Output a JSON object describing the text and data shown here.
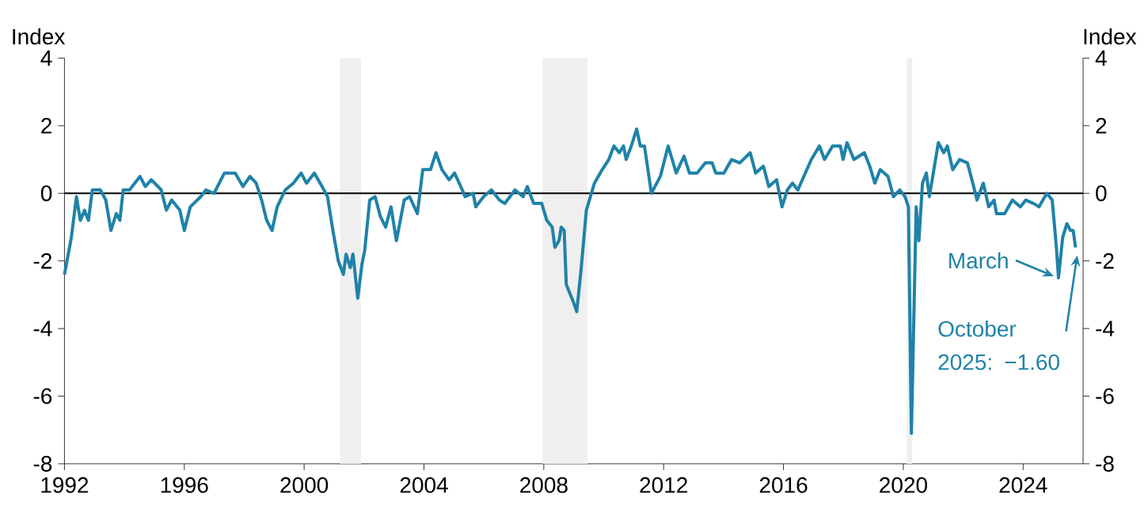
{
  "chart_data": {
    "type": "line",
    "ylabel": "Index",
    "y2label": "Index",
    "x": [
      1992.0,
      1992.23,
      1992.4,
      1992.53,
      1992.67,
      1992.8,
      1992.93,
      1993.2,
      1993.38,
      1993.55,
      1993.73,
      1993.85,
      1993.96,
      1994.17,
      1994.52,
      1994.7,
      1994.9,
      1995.23,
      1995.4,
      1995.58,
      1995.85,
      1996.0,
      1996.2,
      1996.55,
      1996.72,
      1996.99,
      1997.34,
      1997.7,
      1997.96,
      1998.19,
      1998.4,
      1998.58,
      1998.75,
      1998.93,
      1999.1,
      1999.37,
      1999.64,
      1999.9,
      2000.08,
      2000.34,
      2000.6,
      2000.78,
      2000.96,
      2001.14,
      2001.31,
      2001.4,
      2001.54,
      2001.63,
      2001.79,
      2001.93,
      2002.02,
      2002.19,
      2002.37,
      2002.55,
      2002.72,
      2002.9,
      2003.08,
      2003.34,
      2003.52,
      2003.78,
      2003.96,
      2004.22,
      2004.4,
      2004.6,
      2004.84,
      2005.02,
      2005.28,
      2005.37,
      2005.64,
      2005.73,
      2005.99,
      2006.25,
      2006.52,
      2006.7,
      2007.04,
      2007.31,
      2007.45,
      2007.66,
      2007.93,
      2008.1,
      2008.28,
      2008.37,
      2008.51,
      2008.58,
      2008.68,
      2008.75,
      2008.98,
      2009.1,
      2009.25,
      2009.42,
      2009.69,
      2009.95,
      2010.17,
      2010.34,
      2010.52,
      2010.66,
      2010.75,
      2010.92,
      2011.1,
      2011.22,
      2011.36,
      2011.59,
      2011.89,
      2012.15,
      2012.42,
      2012.68,
      2012.86,
      2013.12,
      2013.39,
      2013.62,
      2013.74,
      2014.01,
      2014.27,
      2014.54,
      2014.89,
      2015.07,
      2015.33,
      2015.51,
      2015.77,
      2015.95,
      2016.13,
      2016.3,
      2016.48,
      2016.93,
      2017.2,
      2017.37,
      2017.64,
      2017.9,
      2017.99,
      2018.12,
      2018.35,
      2018.7,
      2018.88,
      2019.05,
      2019.23,
      2019.49,
      2019.67,
      2019.88,
      2020.06,
      2020.17,
      2020.27,
      2020.43,
      2020.52,
      2020.64,
      2020.77,
      2020.87,
      2021.17,
      2021.35,
      2021.47,
      2021.65,
      2021.88,
      2022.14,
      2022.32,
      2022.46,
      2022.67,
      2022.85,
      2023.03,
      2023.11,
      2023.38,
      2023.64,
      2023.91,
      2024.09,
      2024.35,
      2024.53,
      2024.79,
      2024.97,
      2025.11,
      2025.18,
      2025.32,
      2025.46,
      2025.58,
      2025.67,
      2025.75
    ],
    "series": [
      {
        "color": "#1f82a8",
        "values": [
          -2.4,
          -1.3,
          -0.1,
          -0.8,
          -0.5,
          -0.8,
          0.1,
          0.1,
          -0.2,
          -1.1,
          -0.6,
          -0.8,
          0.1,
          0.1,
          0.5,
          0.2,
          0.4,
          0.1,
          -0.5,
          -0.2,
          -0.5,
          -1.1,
          -0.4,
          -0.1,
          0.1,
          0.0,
          0.6,
          0.6,
          0.2,
          0.5,
          0.3,
          -0.2,
          -0.8,
          -1.1,
          -0.4,
          0.1,
          0.3,
          0.6,
          0.3,
          0.6,
          0.2,
          -0.1,
          -1.1,
          -2.0,
          -2.4,
          -1.8,
          -2.2,
          -1.8,
          -3.1,
          -2.1,
          -1.7,
          -0.2,
          -0.1,
          -0.7,
          -1.0,
          -0.4,
          -1.4,
          -0.2,
          -0.1,
          -0.6,
          0.7,
          0.7,
          1.2,
          0.7,
          0.4,
          0.6,
          0.1,
          -0.1,
          0.0,
          -0.4,
          -0.1,
          0.1,
          -0.2,
          -0.3,
          0.1,
          -0.1,
          0.2,
          -0.3,
          -0.3,
          -0.8,
          -1.0,
          -1.6,
          -1.4,
          -1.0,
          -1.1,
          -2.7,
          -3.2,
          -3.5,
          -2.2,
          -0.5,
          0.3,
          0.7,
          1.0,
          1.4,
          1.2,
          1.4,
          1.0,
          1.4,
          1.9,
          1.4,
          1.4,
          0.0,
          0.5,
          1.4,
          0.6,
          1.1,
          0.6,
          0.6,
          0.9,
          0.9,
          0.6,
          0.6,
          1.0,
          0.9,
          1.2,
          0.6,
          0.8,
          0.2,
          0.4,
          -0.4,
          0.1,
          0.3,
          0.1,
          1.0,
          1.4,
          1.0,
          1.4,
          1.4,
          1.0,
          1.5,
          1.0,
          1.2,
          0.8,
          0.3,
          0.7,
          0.5,
          -0.1,
          0.1,
          -0.1,
          -0.4,
          -7.1,
          -0.4,
          -1.4,
          0.3,
          0.6,
          -0.1,
          1.5,
          1.2,
          1.4,
          0.7,
          1.0,
          0.9,
          0.3,
          -0.2,
          0.3,
          -0.4,
          -0.2,
          -0.6,
          -0.6,
          -0.2,
          -0.4,
          -0.2,
          -0.3,
          -0.4,
          0.0,
          -0.2,
          -1.6,
          -2.5,
          -1.3,
          -0.9,
          -1.1,
          -1.1,
          -1.6
        ]
      }
    ],
    "xlim": [
      1992,
      2026
    ],
    "xticks": [
      1992,
      1996,
      2000,
      2004,
      2008,
      2012,
      2016,
      2020,
      2024
    ],
    "ylim": [
      -8,
      4
    ],
    "yticks": [
      -8,
      -6,
      -4,
      -2,
      0,
      2,
      4
    ],
    "y2lim": [
      -8,
      4
    ],
    "y2ticks": [
      -8,
      -6,
      -4,
      -2,
      0,
      2,
      4
    ],
    "marker": "none",
    "line_style": "solid",
    "ref_lines": [
      {
        "axis": "y",
        "value": 0,
        "color": "#000000"
      }
    ],
    "bands": [
      {
        "axis": "x",
        "from": 2001.2,
        "to": 2001.9,
        "color": "#efefef"
      },
      {
        "axis": "x",
        "from": 2007.96,
        "to": 2009.46,
        "color": "#efefef"
      },
      {
        "axis": "x",
        "from": 2020.12,
        "to": 2020.3,
        "color": "#efefef"
      }
    ],
    "annotations": [
      {
        "text": "March",
        "x": 2025.18,
        "y": -2.5
      },
      "October 2025: −1.60"
    ]
  }
}
